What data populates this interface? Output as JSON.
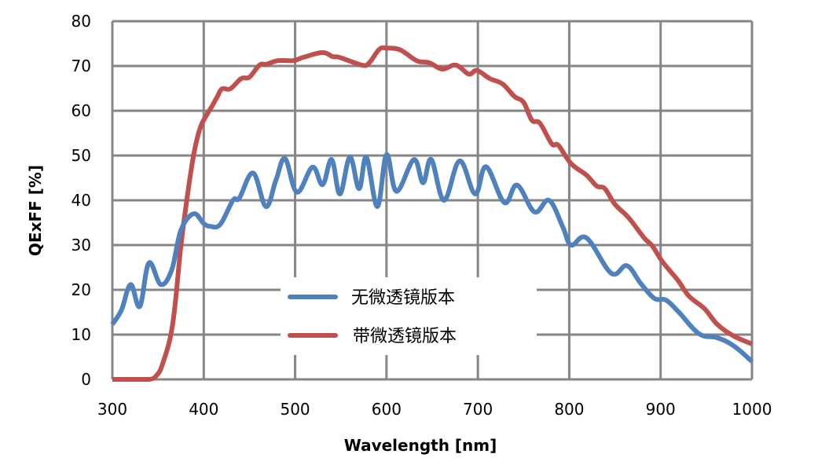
{
  "chart_data": {
    "type": "line",
    "title": "",
    "xlabel": "Wavelength [nm]",
    "ylabel": "QExFF [%]",
    "xlim": [
      300,
      1000
    ],
    "ylim": [
      0,
      80
    ],
    "xticks": [
      300,
      400,
      500,
      600,
      700,
      800,
      900,
      1000
    ],
    "yticks": [
      0,
      10,
      20,
      30,
      40,
      50,
      60,
      70,
      80
    ],
    "xtick_labels": [
      "300",
      "400",
      "500",
      "600",
      "700",
      "800",
      "900",
      "1000"
    ],
    "ytick_labels": [
      "0",
      "10",
      "20",
      "30",
      "40",
      "50",
      "60",
      "70",
      "80"
    ],
    "grid": true,
    "legend_position": "bottom-center",
    "series": [
      {
        "name": "无微透镜版本",
        "color": "#4F81BD",
        "x": [
          300,
          310,
          320,
          330,
          340,
          353,
          365,
          375,
          389,
          400,
          407,
          418,
          432,
          439,
          454,
          468,
          479,
          489,
          502,
          519,
          530,
          540,
          549,
          560,
          570,
          578,
          590,
          600,
          611,
          630,
          640,
          649,
          663,
          680,
          697,
          709,
          729,
          743,
          762,
          778,
          793,
          802,
          819,
          846,
          863,
          878,
          893,
          906,
          920,
          942,
          962,
          980,
          1000
        ],
        "y": [
          12.3,
          15.5,
          21.2,
          16.3,
          26.0,
          21.2,
          24.5,
          33.3,
          37.0,
          34.8,
          34.2,
          34.6,
          40.0,
          40.5,
          46.1,
          38.6,
          44.5,
          49.3,
          41.8,
          47.4,
          43.5,
          49.1,
          41.4,
          49.6,
          42.6,
          49.6,
          38.6,
          50.2,
          42.0,
          49.1,
          43.9,
          49.1,
          40.0,
          48.8,
          41.4,
          47.5,
          39.5,
          43.4,
          37.4,
          40.0,
          34.0,
          30.0,
          31.6,
          23.7,
          25.4,
          21.5,
          18.1,
          17.7,
          15.0,
          10.2,
          9.3,
          7.5,
          4.0
        ]
      },
      {
        "name": "带微透镜版本",
        "color": "#C0504D",
        "x": [
          300,
          320,
          340,
          348,
          355,
          366,
          375,
          382,
          389,
          396,
          403,
          409,
          415,
          420,
          429,
          441,
          450,
          461,
          469,
          481,
          498,
          510,
          530,
          541,
          549,
          573,
          581,
          592,
          600,
          615,
          633,
          647,
          661,
          676,
          690,
          699,
          713,
          727,
          740,
          750,
          759,
          768,
          781,
          788,
          802,
          819,
          830,
          839,
          850,
          865,
          882,
          891,
          902,
          919,
          931,
          948,
          962,
          979,
          1000
        ],
        "y": [
          0,
          0,
          0,
          0.8,
          3.5,
          12.3,
          29.8,
          40.9,
          50.2,
          56.1,
          59.0,
          61.0,
          63.2,
          64.9,
          64.9,
          67.2,
          67.5,
          70.2,
          70.4,
          71.2,
          71.2,
          72.0,
          73.0,
          72.1,
          71.9,
          70.2,
          70.7,
          73.7,
          74.0,
          73.6,
          71.2,
          70.7,
          69.3,
          70.2,
          68.2,
          69.0,
          67.2,
          66.0,
          63.2,
          61.9,
          57.9,
          57.2,
          52.6,
          52.3,
          48.2,
          45.6,
          43.2,
          42.6,
          39.1,
          36.1,
          31.6,
          29.8,
          26.3,
          22.1,
          18.6,
          15.8,
          12.3,
          9.8,
          7.9
        ]
      }
    ]
  }
}
